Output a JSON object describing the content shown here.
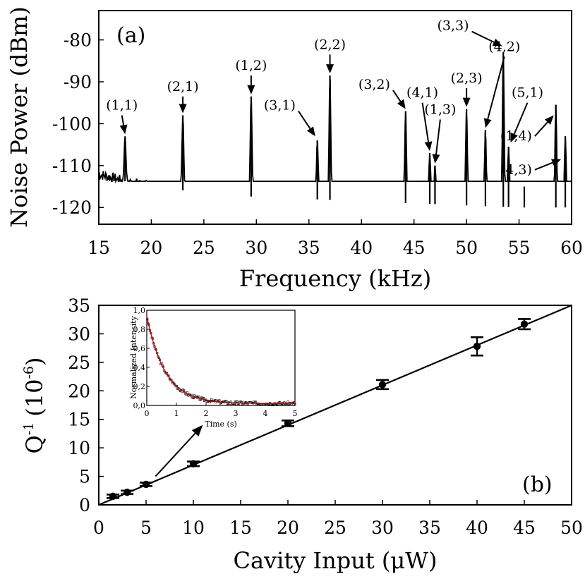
{
  "chart_data": [
    {
      "type": "line",
      "panel_label": "(a)",
      "xlabel": "Frequency (kHz)",
      "ylabel": "Noise Power (dBm)",
      "xlim": [
        15,
        60
      ],
      "ylim": [
        -124,
        -73
      ],
      "xticks": [
        15,
        20,
        25,
        30,
        35,
        40,
        45,
        50,
        55,
        60
      ],
      "xtick_labels": [
        "15",
        "20",
        "25",
        "30",
        "35",
        "40",
        "45",
        "50",
        "55",
        "60"
      ],
      "yticks": [
        -120,
        -110,
        -100,
        -90,
        -80
      ],
      "ytick_labels": [
        "-120",
        "-110",
        "-100",
        "-90",
        "-80"
      ],
      "grid": false,
      "baseline": [
        {
          "x": 15,
          "y": -112
        },
        {
          "x": 17,
          "y": -113.5
        },
        {
          "x": 20,
          "y": -115
        },
        {
          "x": 25,
          "y": -116.5
        },
        {
          "x": 30,
          "y": -117.5
        },
        {
          "x": 35,
          "y": -118
        },
        {
          "x": 40,
          "y": -118.5
        },
        {
          "x": 45,
          "y": -119
        },
        {
          "x": 50,
          "y": -119.5
        },
        {
          "x": 55,
          "y": -120
        },
        {
          "x": 60,
          "y": -120
        }
      ],
      "peaks": [
        {
          "mode": "(1,1)",
          "x": 17.5,
          "y": -103
        },
        {
          "mode": "(2,1)",
          "x": 23.0,
          "y": -98
        },
        {
          "mode": "(1,2)",
          "x": 29.5,
          "y": -93.5
        },
        {
          "mode": "(3,1)",
          "x": 35.8,
          "y": -104
        },
        {
          "mode": "(2,2)",
          "x": 37.0,
          "y": -88.5
        },
        {
          "mode": "(3,2)",
          "x": 44.2,
          "y": -97
        },
        {
          "mode": "(4,1)",
          "x": 46.5,
          "y": -107
        },
        {
          "mode": "(1,3)",
          "x": 47.0,
          "y": -110
        },
        {
          "mode": "(2,3)",
          "x": 50.0,
          "y": -96.5
        },
        {
          "mode": "(4,2)",
          "x": 51.8,
          "y": -101.5
        },
        {
          "mode": "(3,3)",
          "x": 53.5,
          "y": -83
        },
        {
          "mode": "(5,1)",
          "x": 54.0,
          "y": -105.5
        },
        {
          "mode": "(4,3)",
          "x": 55.5,
          "y": -115
        },
        {
          "mode": "(1,4)",
          "x": 58.5,
          "y": -95.5
        },
        {
          "mode": "",
          "x": 59.4,
          "y": -103
        }
      ],
      "annotations": [
        {
          "text": "(1,1)",
          "arrow_tail": [
            17.2,
            -98
          ],
          "arrow_head": [
            17.5,
            -102.5
          ]
        },
        {
          "text": "(2,1)",
          "arrow_tail": [
            23.0,
            -93.5
          ],
          "arrow_head": [
            23.0,
            -97.5
          ]
        },
        {
          "text": "(1,2)",
          "arrow_tail": [
            29.5,
            -88.5
          ],
          "arrow_head": [
            29.5,
            -93
          ]
        },
        {
          "text": "(3,1)",
          "arrow_tail": [
            34.0,
            -97
          ],
          "arrow_head": [
            35.6,
            -103
          ]
        },
        {
          "text": "(2,2)",
          "arrow_tail": [
            37.0,
            -83.5
          ],
          "arrow_head": [
            37.0,
            -88
          ]
        },
        {
          "text": "(3,2)",
          "arrow_tail": [
            43.0,
            -92
          ],
          "arrow_head": [
            44.2,
            -96.5
          ]
        },
        {
          "text": "(4,1)",
          "arrow_tail": [
            45.8,
            -95
          ],
          "arrow_head": [
            46.5,
            -106.5
          ]
        },
        {
          "text": "(1,3)",
          "arrow_tail": [
            47.5,
            -99
          ],
          "arrow_head": [
            47.0,
            -109.5
          ]
        },
        {
          "text": "(2,3)",
          "arrow_tail": [
            50.0,
            -91.5
          ],
          "arrow_head": [
            50.0,
            -96
          ]
        },
        {
          "text": "(3,3)",
          "arrow_tail": [
            50.5,
            -78
          ],
          "arrow_head": [
            53.4,
            -81.5
          ]
        },
        {
          "text": "(4,2)",
          "arrow_tail": [
            53.6,
            -84
          ],
          "arrow_head": [
            51.8,
            -101
          ]
        },
        {
          "text": "(5,1)",
          "arrow_tail": [
            55.8,
            -95
          ],
          "arrow_head": [
            54.2,
            -104.5
          ]
        },
        {
          "text": "(1,4)",
          "arrow_tail": [
            56.5,
            -103
          ],
          "arrow_head": [
            58.3,
            -98
          ]
        },
        {
          "text": "(4,3)",
          "arrow_tail": [
            56.5,
            -111
          ],
          "arrow_head": [
            59.0,
            -108.5
          ]
        }
      ]
    },
    {
      "type": "scatter",
      "panel_label": "(b)",
      "xlabel": "Cavity Input (μW)",
      "ylabel_main": "Q",
      "ylabel_sup": "-1",
      "ylabel_paren_open": "(10",
      "ylabel_paren_sup": "-6",
      "ylabel_paren_close": ")",
      "xlim": [
        0,
        50
      ],
      "ylim": [
        0,
        35
      ],
      "xticks": [
        0,
        5,
        10,
        15,
        20,
        25,
        30,
        35,
        40,
        45,
        50
      ],
      "xtick_labels": [
        "0",
        "5",
        "10",
        "15",
        "20",
        "25",
        "30",
        "35",
        "40",
        "45",
        "50"
      ],
      "yticks": [
        0,
        5,
        10,
        15,
        20,
        25,
        30,
        35
      ],
      "ytick_labels": [
        "0",
        "5",
        "10",
        "15",
        "20",
        "25",
        "30",
        "35"
      ],
      "grid": false,
      "points": [
        {
          "x": 1.5,
          "y": 1.5,
          "err": 0.3
        },
        {
          "x": 3,
          "y": 2.2,
          "err": 0.3
        },
        {
          "x": 5,
          "y": 3.6,
          "err": 0.3
        },
        {
          "x": 10,
          "y": 7.2,
          "err": 0.4
        },
        {
          "x": 20,
          "y": 14.3,
          "err": 0.5
        },
        {
          "x": 30,
          "y": 21.1,
          "err": 0.8
        },
        {
          "x": 40,
          "y": 27.8,
          "err": 1.6
        },
        {
          "x": 45,
          "y": 31.7,
          "err": 0.9
        }
      ],
      "fit_line": {
        "x": [
          0,
          50
        ],
        "y": [
          0,
          35
        ]
      },
      "inset_arrow": {
        "from": [
          6,
          5
        ],
        "to": [
          11,
          14
        ]
      },
      "inset": {
        "type": "line",
        "xlabel": "Time (s)",
        "ylabel": "Normalized Intensity",
        "xlim": [
          0,
          5
        ],
        "ylim": [
          0,
          1.0
        ],
        "xticks": [
          0,
          1,
          2,
          3,
          4,
          5
        ],
        "xtick_labels": [
          "0",
          "1",
          "2",
          "3",
          "4",
          "5"
        ],
        "yticks": [
          0,
          0.2,
          0.4,
          0.6,
          0.8,
          1.0
        ],
        "ytick_labels": [
          "0,0",
          "0,2",
          "0,4",
          "0,6",
          "0,8",
          "1,0"
        ],
        "decay": {
          "amplitude": 0.92,
          "tau": 0.62,
          "offset": 0.02
        },
        "data_color": "#000000",
        "fit_color": "#cc0000"
      }
    }
  ]
}
